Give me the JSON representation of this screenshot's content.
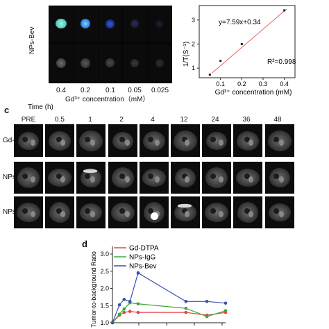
{
  "panel_a": {
    "row_label": "NPs-Bev",
    "concentrations": [
      "0.4",
      "0.2",
      "0.1",
      "0.05",
      "0.025"
    ],
    "xlabel": "Gd³⁺ concentration（mM）"
  },
  "panel_b": {
    "equation": "y=7.59x+0.34",
    "r2": "R²=0.998",
    "ylabel": "1/T(S⁻¹)",
    "xlabel": "Gd³⁺ concentration (mM)",
    "chart_data": {
      "type": "scatter",
      "x": [
        0.05,
        0.1,
        0.2,
        0.4
      ],
      "y": [
        0.73,
        1.3,
        2.0,
        3.4
      ],
      "fit": {
        "slope": 7.59,
        "intercept": 0.34
      },
      "xlim": [
        0.0,
        0.45
      ],
      "ylim": [
        0.6,
        3.6
      ],
      "xticks": [
        "0.1",
        "0.2",
        "0.3",
        "0.4"
      ],
      "yticks": [
        "1",
        "2",
        "3"
      ],
      "marker_color": "#222222",
      "line_color": "#e06060"
    }
  },
  "panel_c": {
    "label": "c",
    "time_label": "Time (h)",
    "timepoints": [
      "PRE",
      "0.5",
      "1",
      "2",
      "4",
      "12",
      "24",
      "36",
      "48"
    ],
    "rows": [
      "Gd-DTPA",
      "NPs-IgG",
      "NPs-Bev"
    ]
  },
  "panel_d": {
    "label": "d",
    "ylabel": "Tumor-to-background Ratio",
    "chart_data": {
      "type": "line",
      "x": [
        0,
        0.5,
        1,
        2,
        4,
        12,
        24,
        48
      ],
      "ylim": [
        1.0,
        3.0
      ],
      "yticks": [
        "1.0",
        "1.5",
        "2.0",
        "2.5",
        "3.0"
      ],
      "series": [
        {
          "name": "Gd-DTPA",
          "color": "#e0474c",
          "values": [
            1.0,
            1.22,
            1.3,
            1.33,
            1.3,
            1.3,
            1.22,
            1.3
          ]
        },
        {
          "name": "NPs-IgG",
          "color": "#3aa83a",
          "values": [
            1.0,
            1.25,
            1.4,
            1.58,
            1.55,
            1.42,
            1.18,
            1.35
          ]
        },
        {
          "name": "NPs-Bev",
          "color": "#3b4fb0",
          "values": [
            1.0,
            1.52,
            1.68,
            1.62,
            2.45,
            1.62,
            1.62,
            1.57
          ]
        }
      ]
    }
  }
}
